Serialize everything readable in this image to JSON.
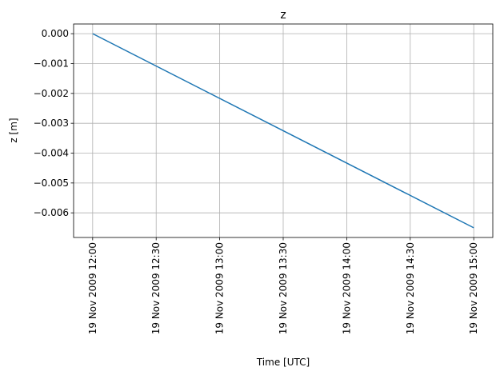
{
  "chart_data": {
    "type": "line",
    "title": "z",
    "xlabel": "Time  [UTC]",
    "ylabel": "z  [m]",
    "x": [
      "2009-11-19T12:00",
      "2009-11-19T15:00"
    ],
    "series": [
      {
        "name": "z",
        "color": "#1f77b4",
        "values": [
          0,
          -0.0065
        ]
      }
    ],
    "xlim": [
      "2009-11-19T11:51",
      "2009-11-19T15:09"
    ],
    "xticks": [
      {
        "value": "2009-11-19T12:00",
        "label": "19 Nov 2009 12:00"
      },
      {
        "value": "2009-11-19T12:30",
        "label": "19 Nov 2009 12:30"
      },
      {
        "value": "2009-11-19T13:00",
        "label": "19 Nov 2009 13:00"
      },
      {
        "value": "2009-11-19T13:30",
        "label": "19 Nov 2009 13:30"
      },
      {
        "value": "2009-11-19T14:00",
        "label": "19 Nov 2009 14:00"
      },
      {
        "value": "2009-11-19T14:30",
        "label": "19 Nov 2009 14:30"
      },
      {
        "value": "2009-11-19T15:00",
        "label": "19 Nov 2009 15:00"
      }
    ],
    "ylim": [
      -0.006825,
      0.000325
    ],
    "yticks": [
      {
        "value": 0,
        "label": "0.000"
      },
      {
        "value": -0.001,
        "label": "−0.001"
      },
      {
        "value": -0.002,
        "label": "−0.002"
      },
      {
        "value": -0.003,
        "label": "−0.003"
      },
      {
        "value": -0.004,
        "label": "−0.004"
      },
      {
        "value": -0.005,
        "label": "−0.005"
      },
      {
        "value": -0.006,
        "label": "−0.006"
      }
    ],
    "grid": true
  }
}
